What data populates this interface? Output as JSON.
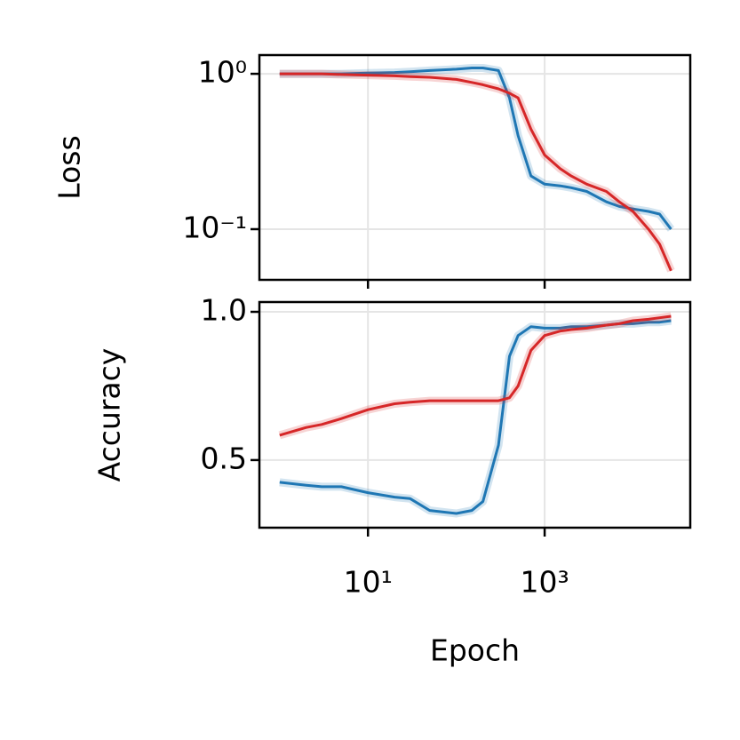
{
  "chart_data": [
    {
      "type": "line",
      "ylabel": "Loss",
      "xscale": "log",
      "yscale": "log",
      "grid": true,
      "x": [
        1,
        2,
        3,
        5,
        10,
        20,
        30,
        50,
        100,
        150,
        200,
        300,
        400,
        500,
        700,
        1000,
        1500,
        2000,
        3000,
        5000,
        7000,
        10000,
        15000,
        20000,
        27000
      ],
      "series": [
        {
          "color": "#1f77b4",
          "values": [
            1.0,
            1.0,
            1.0,
            1.0,
            1.01,
            1.02,
            1.03,
            1.05,
            1.07,
            1.09,
            1.09,
            1.05,
            0.7,
            0.4,
            0.22,
            0.195,
            0.19,
            0.185,
            0.175,
            0.15,
            0.14,
            0.135,
            0.13,
            0.125,
            0.1
          ]
        },
        {
          "color": "#d62728",
          "values": [
            1.0,
            1.0,
            1.0,
            0.99,
            0.98,
            0.97,
            0.96,
            0.95,
            0.92,
            0.88,
            0.85,
            0.8,
            0.75,
            0.7,
            0.44,
            0.3,
            0.245,
            0.22,
            0.195,
            0.175,
            0.15,
            0.13,
            0.1,
            0.08,
            0.054
          ]
        }
      ],
      "xlim": [
        0.59,
        44500
      ],
      "xticks": [
        10,
        1000
      ],
      "ylim": [
        0.0472,
        1.32
      ],
      "yticks": [
        {
          "value": 1,
          "label": "10⁰"
        },
        {
          "value": 0.1,
          "label": "10⁻¹"
        }
      ]
    },
    {
      "type": "line",
      "ylabel": "Accuracy",
      "xlabel": "Epoch",
      "xscale": "log",
      "grid": true,
      "x": [
        1,
        2,
        3,
        5,
        10,
        20,
        30,
        50,
        100,
        150,
        200,
        300,
        400,
        500,
        700,
        1000,
        1500,
        2000,
        3000,
        5000,
        7000,
        10000,
        15000,
        20000,
        27000
      ],
      "series": [
        {
          "color": "#1f77b4",
          "values": [
            0.425,
            0.415,
            0.41,
            0.41,
            0.39,
            0.375,
            0.37,
            0.33,
            0.32,
            0.33,
            0.36,
            0.55,
            0.85,
            0.92,
            0.95,
            0.945,
            0.945,
            0.95,
            0.95,
            0.955,
            0.96,
            0.96,
            0.965,
            0.965,
            0.97
          ]
        },
        {
          "color": "#d62728",
          "values": [
            0.584,
            0.61,
            0.62,
            0.64,
            0.67,
            0.69,
            0.695,
            0.7,
            0.7,
            0.7,
            0.7,
            0.7,
            0.71,
            0.75,
            0.87,
            0.92,
            0.935,
            0.94,
            0.945,
            0.955,
            0.96,
            0.97,
            0.975,
            0.98,
            0.985
          ]
        }
      ],
      "xlim": [
        0.59,
        44500
      ],
      "xticks": [
        {
          "value": 10,
          "label": "10¹"
        },
        {
          "value": 1000,
          "label": "10³"
        }
      ],
      "ylim": [
        0.272,
        1.033
      ],
      "yticks": [
        {
          "value": 1.0,
          "label": "1.0"
        },
        {
          "value": 0.5,
          "label": "0.5"
        }
      ]
    }
  ]
}
